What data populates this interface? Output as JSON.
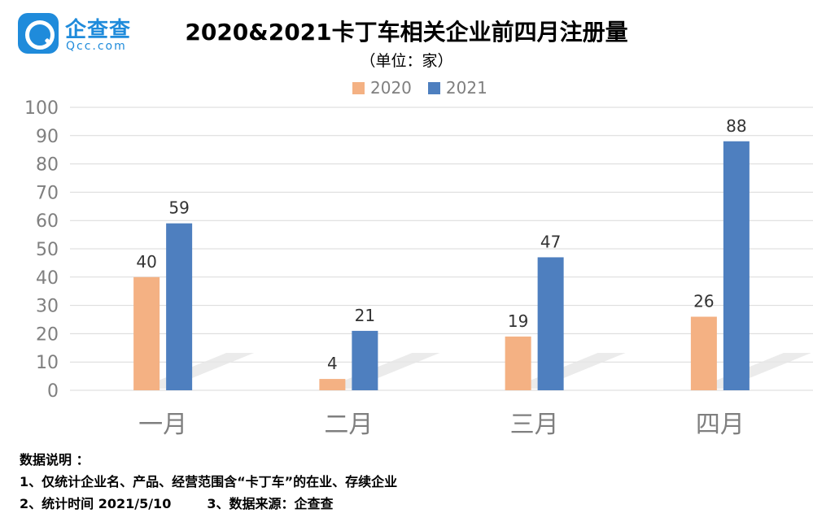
{
  "logo": {
    "cn": "企查查",
    "en": "Qcc.com"
  },
  "chart_data": {
    "type": "bar",
    "title": "2020&2021卡丁车相关企业前四月注册量",
    "subtitle": "（单位：家）",
    "categories": [
      "一月",
      "二月",
      "三月",
      "四月"
    ],
    "series": [
      {
        "name": "2020",
        "values": [
          40,
          4,
          19,
          26
        ],
        "color": "#f4b183"
      },
      {
        "name": "2021",
        "values": [
          59,
          21,
          47,
          88
        ],
        "color": "#4e7fbf"
      }
    ],
    "ylim": [
      0,
      100
    ],
    "yticks": [
      0,
      10,
      20,
      30,
      40,
      50,
      60,
      70,
      80,
      90,
      100
    ],
    "grid": true,
    "legend": "top"
  },
  "notes": {
    "heading": "数据说明 ：",
    "line1": "1、仅统计企业名、产品、经营范围含“卡丁车”的在业、存续企业",
    "line2a": "2、统计时间 2021/5/10",
    "line2b": "3、数据来源：企查查"
  }
}
